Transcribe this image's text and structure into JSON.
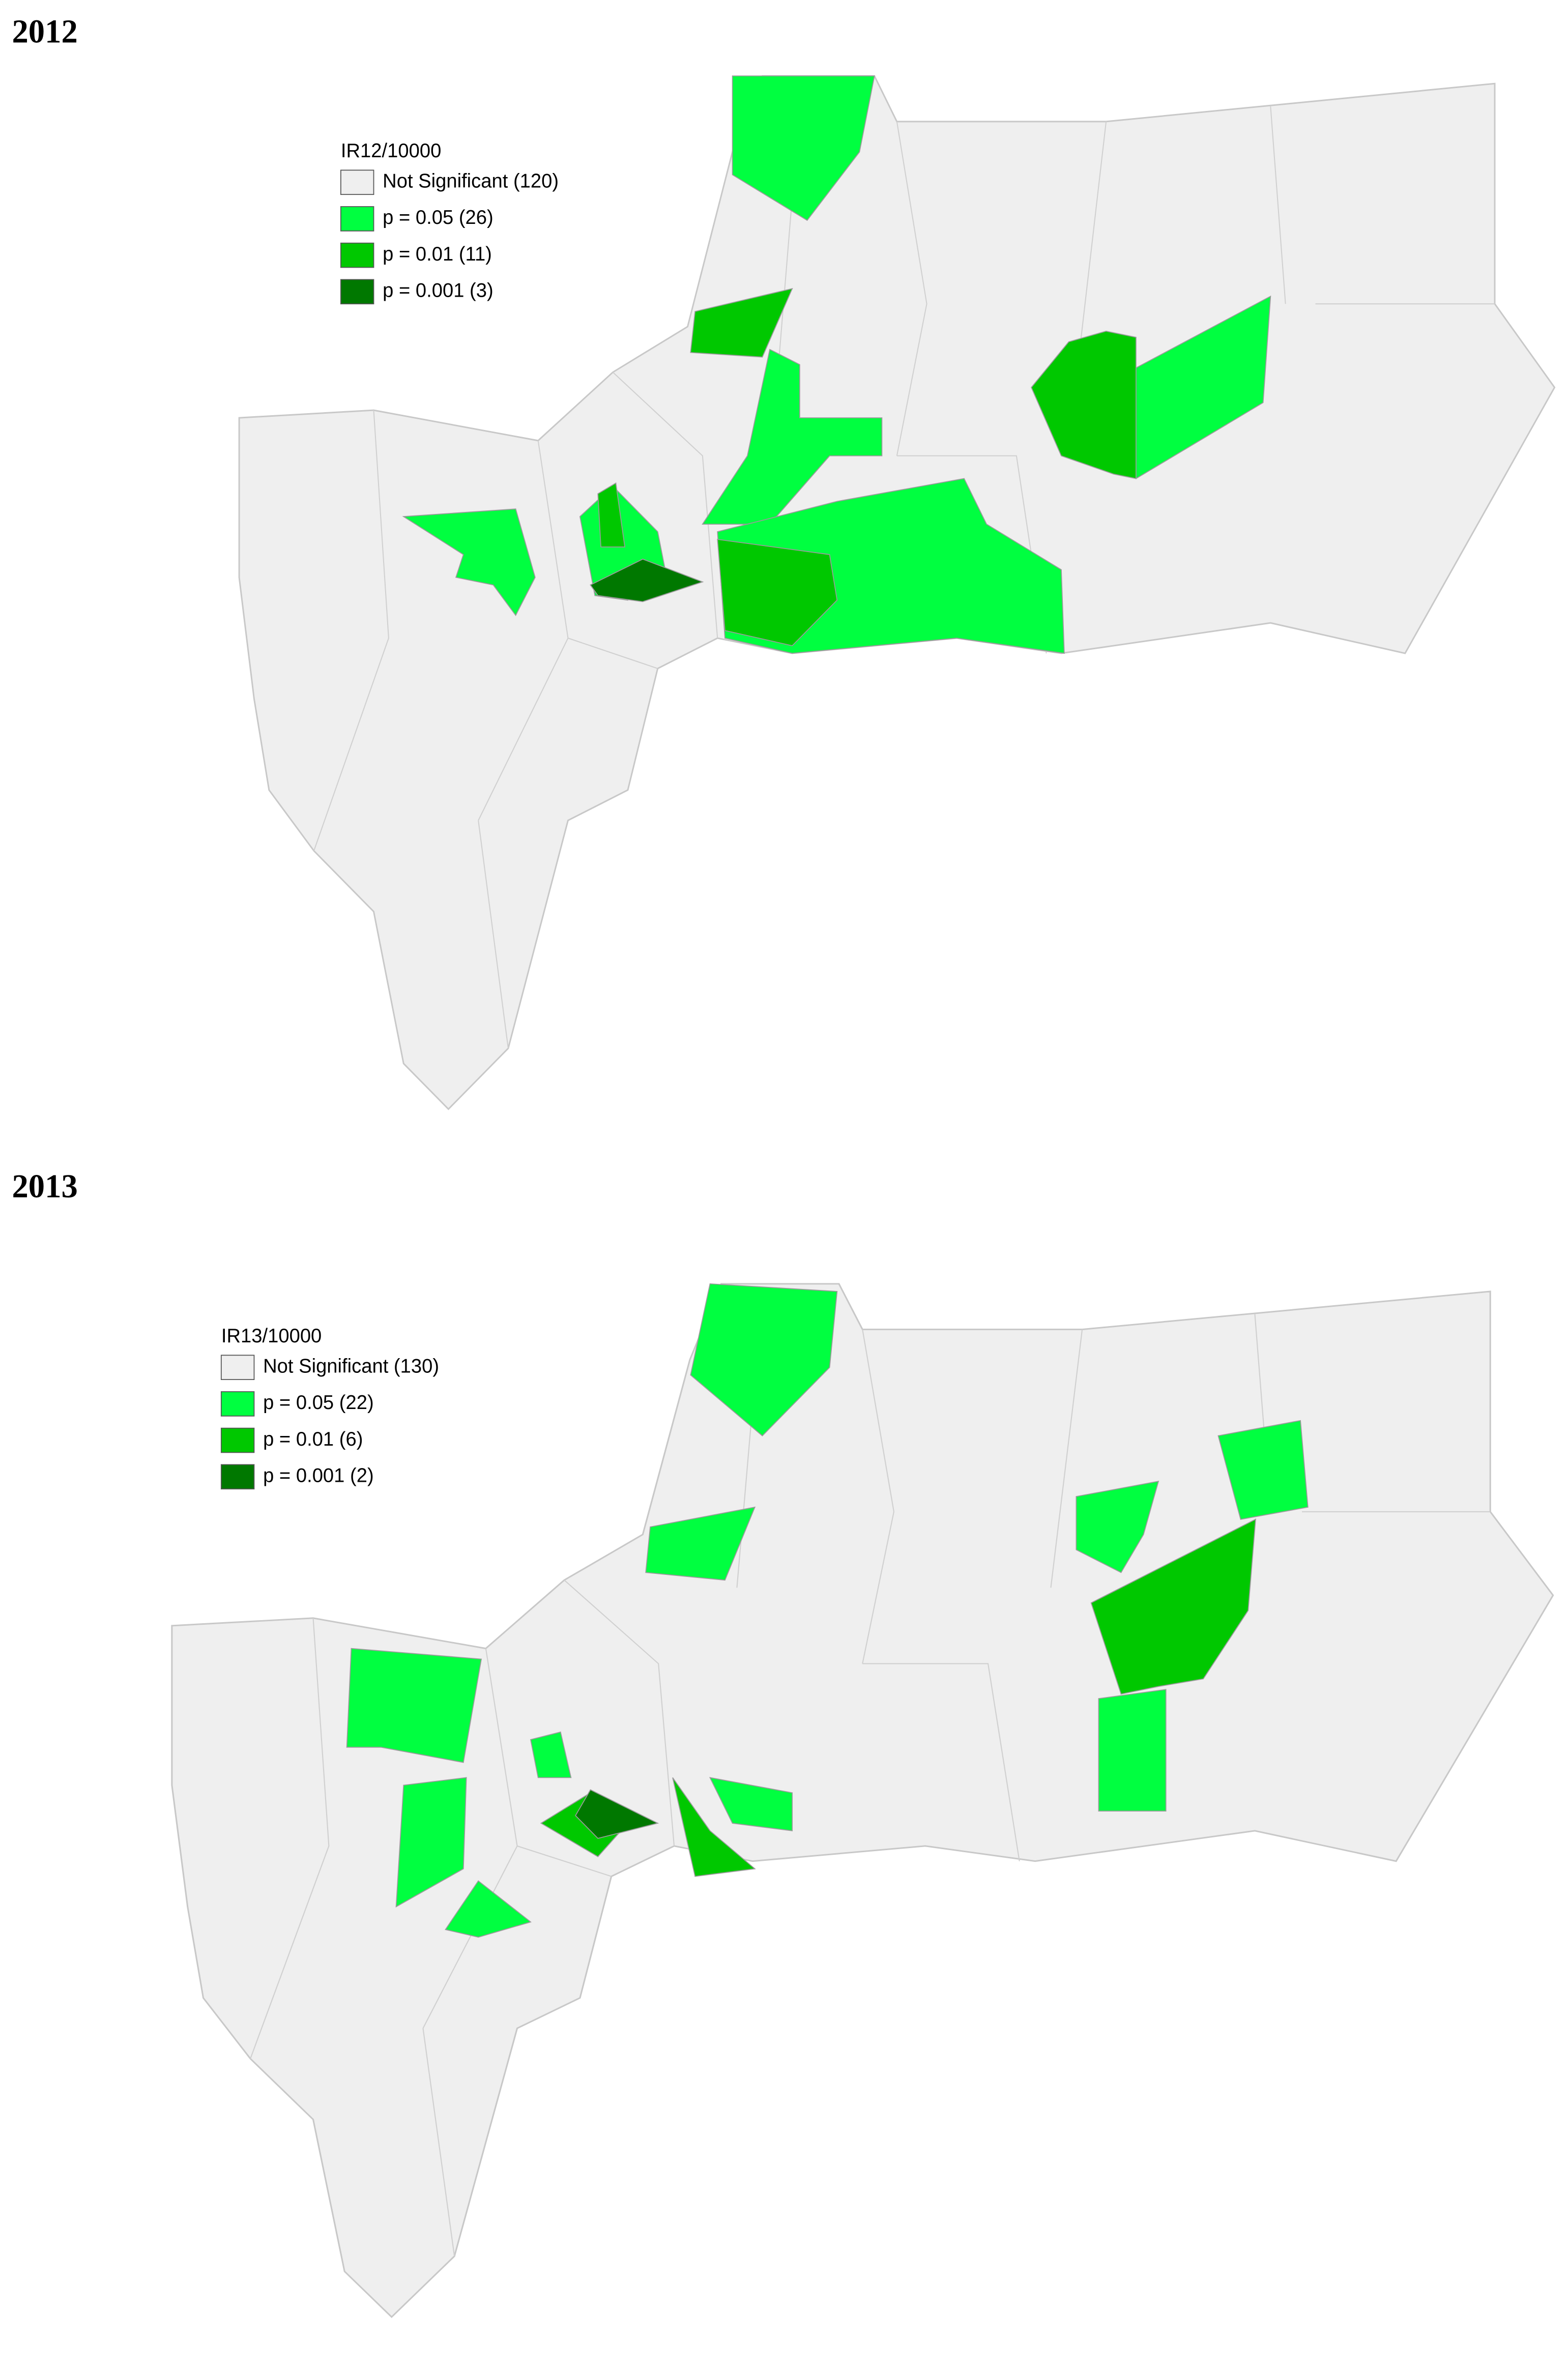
{
  "maps": [
    {
      "title": "2012",
      "legend": {
        "title": "IR12/10000",
        "items": [
          {
            "label": "Not Significant (120)",
            "color": "#efefef"
          },
          {
            "label": "p = 0.05 (26)",
            "color": "#00ff40"
          },
          {
            "label": "p = 0.01 (11)",
            "color": "#00c800"
          },
          {
            "label": "p = 0.001 (3)",
            "color": "#007800"
          }
        ]
      }
    },
    {
      "title": "2013",
      "legend": {
        "title": "IR13/10000",
        "items": [
          {
            "label": "Not Significant (130)",
            "color": "#efefef"
          },
          {
            "label": "p = 0.05 (22)",
            "color": "#00ff40"
          },
          {
            "label": "p = 0.01 (6)",
            "color": "#00c800"
          },
          {
            "label": "p = 0.001 (2)",
            "color": "#007800"
          }
        ]
      }
    }
  ]
}
